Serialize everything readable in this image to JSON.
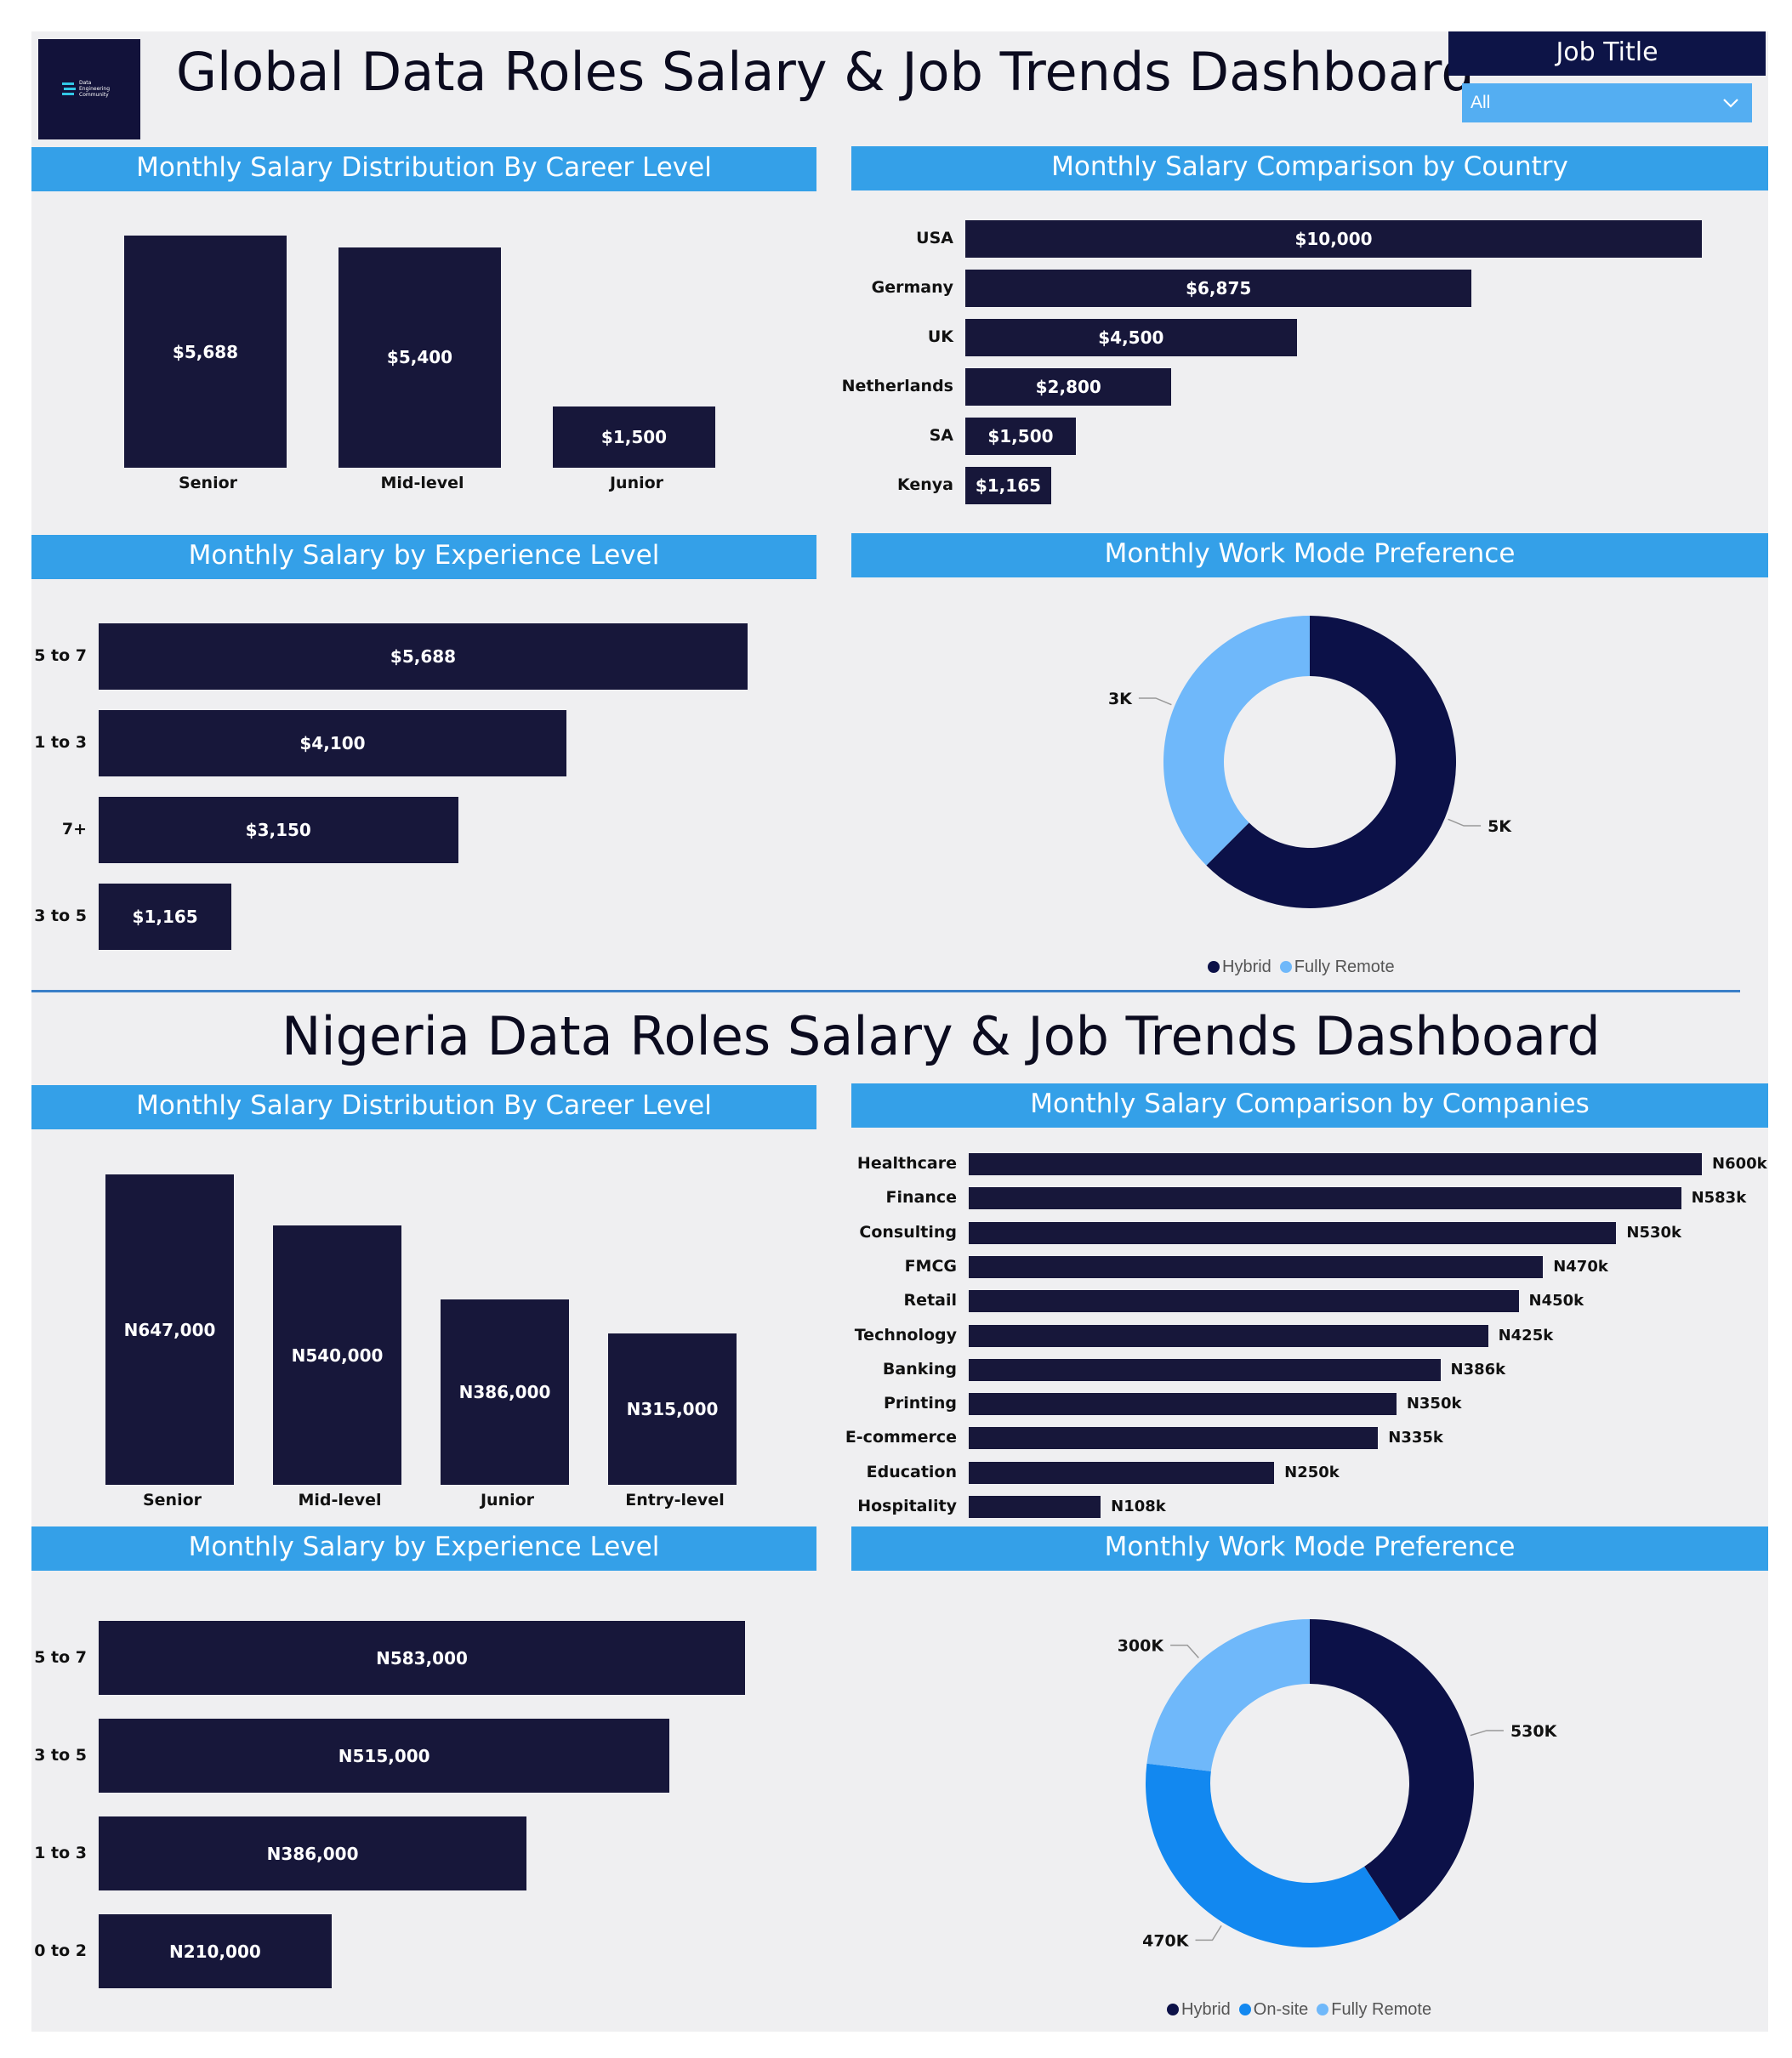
{
  "global": {
    "title": "Global Data Roles Salary & Job Trends Dashboard",
    "logo_text": [
      "Data",
      "Engineering",
      "Community"
    ],
    "filter": {
      "label": "Job Title",
      "value": "All"
    }
  },
  "nigeria": {
    "title": "Nigeria Data Roles Salary & Job Trends Dashboard"
  },
  "colors": {
    "bar": "#17173a",
    "banner": "#34a0e8",
    "hybrid": "#0c1148",
    "onsite": "#1288f0",
    "remote": "#6fb8fa"
  },
  "chart_data": [
    {
      "id": "g_career",
      "type": "bar",
      "title": "Monthly Salary Distribution By Career Level",
      "categories": [
        "Senior",
        "Mid-level",
        "Junior"
      ],
      "values": [
        5688,
        5400,
        1500
      ],
      "value_labels": [
        "$5,688",
        "$5,400",
        "$1,500"
      ]
    },
    {
      "id": "g_country",
      "type": "bar",
      "orientation": "horizontal",
      "title": "Monthly Salary Comparison by Country",
      "categories": [
        "USA",
        "Germany",
        "UK",
        "Netherlands",
        "SA",
        "Kenya"
      ],
      "values": [
        10000,
        6875,
        4500,
        2800,
        1500,
        1165
      ],
      "value_labels": [
        "$10,000",
        "$6,875",
        "$4,500",
        "$2,800",
        "$1,500",
        "$1,165"
      ]
    },
    {
      "id": "g_experience",
      "type": "bar",
      "orientation": "horizontal",
      "title": "Monthly Salary by Experience Level",
      "categories": [
        "5 to 7",
        "1 to 3",
        "7+",
        "3 to 5"
      ],
      "values": [
        5688,
        4100,
        3150,
        1165
      ],
      "value_labels": [
        "$5,688",
        "$4,100",
        "$3,150",
        "$1,165"
      ]
    },
    {
      "id": "g_workmode",
      "type": "pie",
      "donut": true,
      "title": "Monthly Work Mode Preference",
      "categories": [
        "Hybrid",
        "Fully Remote"
      ],
      "values": [
        5000,
        3000
      ],
      "value_labels": [
        "5K",
        "3K"
      ],
      "legend": "bottom"
    },
    {
      "id": "n_career",
      "type": "bar",
      "title": "Monthly Salary Distribution By Career Level",
      "categories": [
        "Senior",
        "Mid-level",
        "Junior",
        "Entry-level"
      ],
      "values": [
        647000,
        540000,
        386000,
        315000
      ],
      "value_labels": [
        "N647,000",
        "N540,000",
        "N386,000",
        "N315,000"
      ]
    },
    {
      "id": "n_companies",
      "type": "bar",
      "orientation": "horizontal",
      "title": "Monthly Salary Comparison by Companies",
      "categories": [
        "Healthcare",
        "Finance",
        "Consulting",
        "FMCG",
        "Retail",
        "Technology",
        "Banking",
        "Printing",
        "E-commerce",
        "Education",
        "Hospitality"
      ],
      "values": [
        600000,
        583000,
        530000,
        470000,
        450000,
        425000,
        386000,
        350000,
        335000,
        250000,
        108000
      ],
      "value_labels": [
        "N600k",
        "N583k",
        "N530k",
        "N470k",
        "N450k",
        "N425k",
        "N386k",
        "N350k",
        "N335k",
        "N250k",
        "N108k"
      ]
    },
    {
      "id": "n_experience",
      "type": "bar",
      "orientation": "horizontal",
      "title": "Monthly Salary by Experience Level",
      "categories": [
        "5 to 7",
        "3 to 5",
        "1 to 3",
        "0 to 2"
      ],
      "values": [
        583000,
        515000,
        386000,
        210000
      ],
      "value_labels": [
        "N583,000",
        "N515,000",
        "N386,000",
        "N210,000"
      ]
    },
    {
      "id": "n_workmode",
      "type": "pie",
      "donut": true,
      "title": "Monthly Work Mode Preference",
      "categories": [
        "Hybrid",
        "On-site",
        "Fully Remote"
      ],
      "values": [
        530000,
        470000,
        300000
      ],
      "value_labels": [
        "530K",
        "470K",
        "300K"
      ],
      "legend": "bottom"
    }
  ]
}
